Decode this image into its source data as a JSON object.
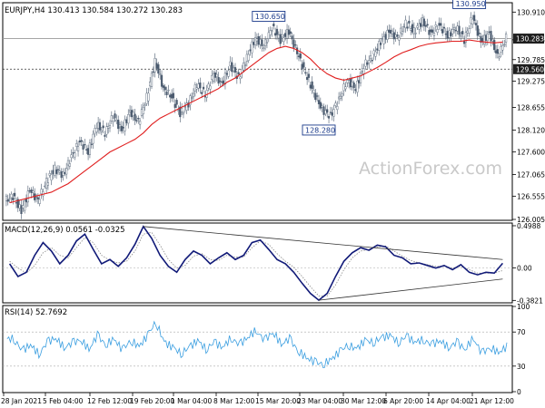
{
  "chart_data": {
    "type": "candlestick",
    "watermark": "ActionForex.com",
    "x_ticks": [
      "28 Jan 2021",
      "5 Feb 04:00",
      "12 Feb 12:00",
      "19 Feb 20:00",
      "1 Mar 04:00",
      "8 Mar 12:00",
      "15 Mar 20:00",
      "23 Mar 04:00",
      "30 Mar 12:00",
      "6 Apr 20:00",
      "14 Apr 04:00",
      "21 Apr 12:00"
    ],
    "price": {
      "header": "EURJPY,H4  130.413 130.584 130.272 130.283",
      "ylim": [
        126.005,
        131.11
      ],
      "y_ticks": [
        126.005,
        126.555,
        127.065,
        127.6,
        128.12,
        128.655,
        129.275,
        129.785,
        130.255,
        130.91
      ],
      "y_tick_labels": [
        "126.005",
        "126.555",
        "127.065",
        "127.600",
        "128.120",
        "128.655",
        "129.275",
        "129.785",
        "130.255",
        "130.910"
      ],
      "close_approx": [
        126.55,
        126.2,
        126.7,
        126.45,
        126.9,
        127.2,
        127.05,
        127.5,
        127.85,
        127.6,
        128.25,
        128.05,
        128.45,
        128.1,
        128.55,
        128.3,
        128.9,
        129.75,
        129.1,
        128.9,
        128.5,
        128.75,
        129.2,
        128.95,
        129.45,
        129.2,
        129.65,
        129.35,
        129.85,
        130.3,
        130.1,
        130.55,
        130.25,
        130.45,
        129.95,
        129.45,
        129.0,
        128.6,
        128.45,
        128.85,
        129.3,
        129.1,
        129.65,
        129.85,
        130.2,
        130.45,
        130.3,
        130.65,
        130.45,
        130.7,
        130.4,
        130.6,
        130.35,
        130.55,
        130.25,
        130.8,
        130.2,
        130.4,
        129.85,
        130.3
      ],
      "ma_approx": [
        126.4,
        126.45,
        126.5,
        126.55,
        126.6,
        126.65,
        126.75,
        126.85,
        127.0,
        127.15,
        127.3,
        127.45,
        127.6,
        127.7,
        127.8,
        127.9,
        128.05,
        128.25,
        128.4,
        128.5,
        128.6,
        128.7,
        128.8,
        128.9,
        129.0,
        129.1,
        129.25,
        129.35,
        129.5,
        129.65,
        129.8,
        129.95,
        130.05,
        130.1,
        130.05,
        129.95,
        129.8,
        129.6,
        129.45,
        129.35,
        129.3,
        129.35,
        129.4,
        129.5,
        129.6,
        129.72,
        129.85,
        129.95,
        130.02,
        130.1,
        130.15,
        130.18,
        130.2,
        130.22,
        130.22,
        130.25,
        130.22,
        130.2,
        130.18,
        130.2
      ],
      "annotations": [
        {
          "label": "130.650",
          "value": 130.65,
          "candle": 31
        },
        {
          "label": "128.280",
          "value": 128.28,
          "candle": 37
        },
        {
          "label": "130.950",
          "value": 130.95,
          "candle": 55
        }
      ],
      "levels": [
        {
          "label": "129.560",
          "value": 129.56,
          "style": "dashed"
        },
        {
          "label": "130.283",
          "value": 130.283,
          "style": "solid"
        }
      ]
    },
    "macd": {
      "header": "MACD(12,26,9) 0.0561 -0.0325",
      "ylim": [
        -0.4,
        0.52
      ],
      "y_ticks": [
        0.4988,
        0.0,
        -0.3821
      ],
      "y_tick_labels": [
        "0.4988",
        "0.00",
        "-0.3821"
      ],
      "zero_label": "0.00",
      "main_approx": [
        0.05,
        -0.1,
        -0.05,
        0.15,
        0.3,
        0.2,
        0.05,
        0.15,
        0.32,
        0.4,
        0.22,
        0.05,
        0.1,
        0.02,
        0.12,
        0.28,
        0.49,
        0.35,
        0.15,
        0.02,
        -0.05,
        0.1,
        0.2,
        0.15,
        0.05,
        0.12,
        0.18,
        0.1,
        0.15,
        0.3,
        0.33,
        0.22,
        0.1,
        0.05,
        -0.05,
        -0.18,
        -0.3,
        -0.38,
        -0.3,
        -0.1,
        0.08,
        0.18,
        0.24,
        0.21,
        0.27,
        0.25,
        0.15,
        0.12,
        0.05,
        0.06,
        0.03,
        0.0,
        0.03,
        -0.02,
        0.04,
        -0.05,
        -0.08,
        -0.05,
        -0.06,
        0.056
      ],
      "signal_approx": [
        0.08,
        0.0,
        -0.06,
        0.03,
        0.18,
        0.24,
        0.15,
        0.12,
        0.24,
        0.36,
        0.3,
        0.15,
        0.09,
        0.06,
        0.08,
        0.2,
        0.4,
        0.42,
        0.27,
        0.1,
        0.0,
        0.03,
        0.14,
        0.17,
        0.1,
        0.09,
        0.15,
        0.13,
        0.13,
        0.24,
        0.32,
        0.28,
        0.17,
        0.08,
        0.01,
        -0.1,
        -0.22,
        -0.33,
        -0.33,
        -0.2,
        -0.02,
        0.12,
        0.2,
        0.22,
        0.25,
        0.26,
        0.2,
        0.14,
        0.09,
        0.06,
        0.04,
        0.02,
        0.02,
        0.0,
        0.02,
        -0.02,
        -0.06,
        -0.06,
        -0.06,
        -0.03
      ],
      "trendlines": [
        {
          "from": {
            "candle": 16,
            "value": 0.49
          },
          "to": {
            "candle": 59,
            "value": 0.1
          }
        },
        {
          "from": {
            "candle": 37,
            "value": -0.38
          },
          "to": {
            "candle": 59,
            "value": -0.13
          }
        }
      ]
    },
    "rsi": {
      "header": "RSI(14) 52.7692",
      "ylim": [
        0,
        100
      ],
      "y_ticks": [
        100,
        70,
        30,
        0
      ],
      "y_tick_labels": [
        "100",
        "70",
        "30",
        "0"
      ],
      "levels": [
        70,
        30
      ],
      "values_approx": [
        62,
        48,
        55,
        44,
        58,
        63,
        52,
        57,
        61,
        50,
        66,
        55,
        62,
        49,
        60,
        53,
        66,
        82,
        58,
        52,
        45,
        52,
        60,
        50,
        58,
        52,
        63,
        55,
        64,
        72,
        60,
        70,
        56,
        62,
        48,
        40,
        35,
        32,
        38,
        47,
        55,
        50,
        60,
        58,
        63,
        66,
        58,
        65,
        58,
        61,
        55,
        60,
        52,
        58,
        50,
        63,
        45,
        52,
        46,
        52.7692
      ]
    }
  }
}
